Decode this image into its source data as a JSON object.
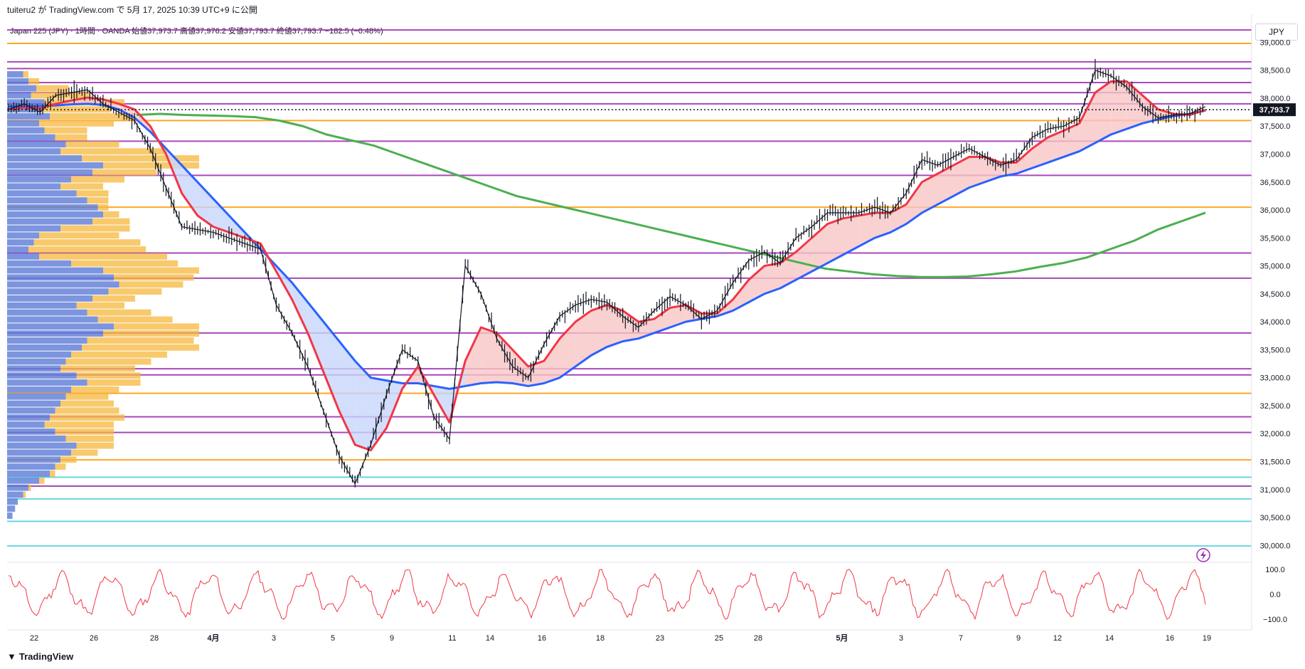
{
  "header": {
    "credit": "tuiteru2 が TradingView.com で 5月 17, 2025 10:39 UTC+9 に公開",
    "symbol_line": "Japan 225 (JPY) · 1時間 · OANDA  始値37,973.7  高値37,976.2  安値37,793.7  終値37,793.7  −182.5 (−0.48%)",
    "currency": "JPY"
  },
  "footer": {
    "logo": "TradingView"
  },
  "colors": {
    "up": "#131722",
    "ema_fast": "#f23645",
    "ema_slow": "#2962ff",
    "sma_long": "#4caf50",
    "fill_up": "#f8c6c6",
    "fill_down": "#c7d6fb",
    "hline_purple": "#9c27b0",
    "hline_orange": "#ff9800",
    "hline_cyan": "#4dd0e1",
    "vp_blue": "#5b7bd6",
    "vp_orange": "#f6b73c",
    "rsi": "#f23645"
  },
  "chart_data": {
    "type": "line",
    "title": "Japan 225 (JPY) · 1時間 · OANDA",
    "ylim": [
      29800,
      39400
    ],
    "price_ticks": [
      "39,000.0",
      "38,500.0",
      "38,000.0",
      "37,500.0",
      "37,000.0",
      "36,500.0",
      "36,000.0",
      "35,500.0",
      "35,000.0",
      "34,500.0",
      "34,000.0",
      "33,500.0",
      "33,000.0",
      "32,500.0",
      "32,000.0",
      "31,500.0",
      "31,000.0",
      "30,500.0",
      "30,000.0"
    ],
    "price_tick_values": [
      39000,
      38500,
      38000,
      37500,
      37000,
      36500,
      36000,
      35500,
      35000,
      34500,
      34000,
      33500,
      33000,
      32500,
      32000,
      31500,
      31000,
      30500,
      30000
    ],
    "last_price": 37793.7,
    "last_price_label": "37,793.7",
    "x_labels": [
      "22",
      "26",
      "28",
      "4月",
      "3",
      "5",
      "9",
      "11",
      "14",
      "16",
      "18",
      "23",
      "25",
      "28",
      "5月",
      "3",
      "7",
      "9",
      "12",
      "14",
      "16",
      "19"
    ],
    "x_label_index": [
      0,
      1,
      2,
      3,
      4,
      5,
      6,
      7,
      8,
      9,
      10,
      11,
      12,
      13,
      14,
      15,
      16,
      17,
      18,
      19,
      20,
      21
    ],
    "price_series": {
      "name": "",
      "close": [
        37800,
        37900,
        37750,
        38050,
        38100,
        38150,
        37900,
        37750,
        37600,
        37100,
        36400,
        35700,
        35650,
        35600,
        35500,
        35400,
        35300,
        34300,
        33800,
        33200,
        32400,
        31600,
        31100,
        31800,
        32700,
        33500,
        33300,
        32300,
        31900,
        35000,
        34500,
        33700,
        33200,
        33000,
        33600,
        34100,
        34300,
        34400,
        34350,
        34100,
        33900,
        34200,
        34450,
        34300,
        34050,
        34200,
        34700,
        35100,
        35250,
        35050,
        35500,
        35700,
        35950,
        35950,
        35950,
        36050,
        35950,
        36300,
        36900,
        36800,
        36950,
        37100,
        36950,
        36800,
        36900,
        37300,
        37450,
        37500,
        37650,
        38500,
        38400,
        38200,
        37850,
        37650,
        37700,
        37720,
        37850
      ]
    },
    "ema_fast": {
      "name": "",
      "values": [
        37800,
        37830,
        37820,
        37900,
        37960,
        38010,
        37980,
        37900,
        37800,
        37500,
        37000,
        36300,
        35900,
        35700,
        35600,
        35500,
        35400,
        34900,
        34400,
        33800,
        33100,
        32400,
        31800,
        31700,
        32100,
        32800,
        33200,
        32700,
        32200,
        33300,
        33900,
        33800,
        33500,
        33200,
        33300,
        33700,
        34000,
        34200,
        34300,
        34200,
        34000,
        34050,
        34250,
        34300,
        34150,
        34150,
        34400,
        34750,
        35000,
        35050,
        35250,
        35500,
        35750,
        35850,
        35900,
        35950,
        35950,
        36100,
        36500,
        36650,
        36800,
        36950,
        36950,
        36850,
        36850,
        37100,
        37300,
        37420,
        37550,
        38100,
        38300,
        38300,
        38050,
        37800,
        37720,
        37700,
        37790
      ]
    },
    "ema_slow": {
      "name": "",
      "values": [
        37850,
        37860,
        37860,
        37870,
        37890,
        37900,
        37880,
        37800,
        37650,
        37400,
        37100,
        36800,
        36500,
        36200,
        35900,
        35600,
        35300,
        35000,
        34700,
        34350,
        34000,
        33650,
        33300,
        33000,
        32950,
        32900,
        32900,
        32850,
        32800,
        32850,
        32900,
        32920,
        32900,
        32850,
        32900,
        33000,
        33200,
        33400,
        33550,
        33650,
        33700,
        33800,
        33900,
        34000,
        34050,
        34100,
        34200,
        34350,
        34500,
        34600,
        34750,
        34900,
        35050,
        35200,
        35350,
        35500,
        35600,
        35750,
        35950,
        36100,
        36250,
        36400,
        36500,
        36600,
        36650,
        36750,
        36850,
        36950,
        37050,
        37200,
        37350,
        37450,
        37550,
        37620,
        37680,
        37720,
        37780
      ]
    },
    "sma_long": {
      "name": "",
      "values": [
        37700,
        37720,
        37700,
        37690,
        37680,
        37660,
        37600,
        37500,
        37350,
        37250,
        37150,
        37000,
        36850,
        36700,
        36550,
        36400,
        36250,
        36150,
        36050,
        35950,
        35850,
        35750,
        35650,
        35550,
        35450,
        35350,
        35250,
        35150,
        35050,
        34950,
        34900,
        34850,
        34820,
        34800,
        34800,
        34810,
        34850,
        34900,
        34980,
        35050,
        35150,
        35300,
        35450,
        35650,
        35800,
        35950
      ]
    },
    "horizontal_levels": [
      {
        "price": 39220,
        "color": "#9c27b0"
      },
      {
        "price": 38980,
        "color": "#ff9800"
      },
      {
        "price": 38650,
        "color": "#9c27b0"
      },
      {
        "price": 38530,
        "color": "#9c27b0"
      },
      {
        "price": 38280,
        "color": "#9c27b0"
      },
      {
        "price": 38100,
        "color": "#9c27b0"
      },
      {
        "price": 37900,
        "color": "#9c27b0"
      },
      {
        "price": 37600,
        "color": "#ff9800"
      },
      {
        "price": 37230,
        "color": "#9c27b0"
      },
      {
        "price": 36620,
        "color": "#9c27b0"
      },
      {
        "price": 36050,
        "color": "#ff9800"
      },
      {
        "price": 35230,
        "color": "#9c27b0"
      },
      {
        "price": 34780,
        "color": "#9c27b0"
      },
      {
        "price": 33800,
        "color": "#9c27b0"
      },
      {
        "price": 33160,
        "color": "#9c27b0"
      },
      {
        "price": 33050,
        "color": "#9c27b0"
      },
      {
        "price": 32720,
        "color": "#ff9800"
      },
      {
        "price": 32300,
        "color": "#9c27b0"
      },
      {
        "price": 32020,
        "color": "#9c27b0"
      },
      {
        "price": 31530,
        "color": "#ff9800"
      },
      {
        "price": 31220,
        "color": "#4dd0e1"
      },
      {
        "price": 31060,
        "color": "#9c27b0"
      },
      {
        "price": 30830,
        "color": "#4dd0e1"
      },
      {
        "price": 30430,
        "color": "#4dd0e1"
      },
      {
        "price": 29990,
        "color": "#4dd0e1"
      }
    ],
    "volume_profile": {
      "rows_blue": [
        30,
        40,
        55,
        45,
        70,
        65,
        80,
        60,
        70,
        90,
        110,
        100,
        140,
        180,
        160,
        120,
        100,
        130,
        150,
        170,
        180,
        160,
        100,
        60,
        50,
        40,
        60,
        120,
        180,
        200,
        210,
        190,
        160,
        130,
        150,
        170,
        200,
        180,
        150,
        140,
        120,
        110,
        100,
        130,
        150,
        120,
        110,
        100,
        90,
        80,
        70,
        90,
        110,
        130,
        120,
        100,
        90,
        80,
        60,
        40,
        30,
        20,
        15,
        10
      ],
      "rows_orange": [
        10,
        20,
        60,
        110,
        150,
        130,
        160,
        140,
        80,
        60,
        100,
        200,
        220,
        180,
        120,
        100,
        80,
        60,
        40,
        20,
        30,
        70,
        130,
        150,
        200,
        220,
        240,
        200,
        180,
        150,
        120,
        100,
        80,
        90,
        120,
        140,
        160,
        180,
        200,
        220,
        180,
        160,
        140,
        120,
        100,
        90,
        80,
        100,
        120,
        140,
        130,
        110,
        90,
        70,
        50,
        30,
        20,
        10,
        10,
        5,
        5,
        0,
        0,
        0
      ]
    },
    "rsi": {
      "name": "",
      "ylim": [
        -100,
        100
      ],
      "ticks": [
        "100.0",
        "0.0",
        "−100.0"
      ],
      "tick_values": [
        100,
        0,
        -100
      ]
    }
  }
}
